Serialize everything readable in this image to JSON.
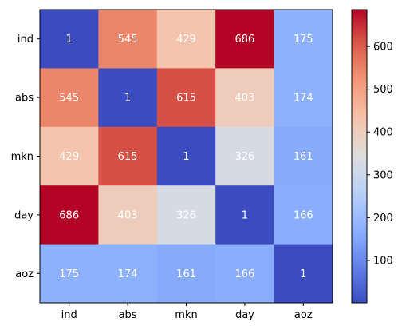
{
  "chart_data": {
    "type": "heatmap",
    "title": "",
    "xlabel": "",
    "ylabel": "",
    "x_categories": [
      "ind",
      "abs",
      "mkn",
      "day",
      "aoz"
    ],
    "y_categories": [
      "ind",
      "abs",
      "mkn",
      "day",
      "aoz"
    ],
    "values": [
      [
        1,
        545,
        429,
        686,
        175
      ],
      [
        545,
        1,
        615,
        403,
        174
      ],
      [
        429,
        615,
        1,
        326,
        161
      ],
      [
        686,
        403,
        326,
        1,
        166
      ],
      [
        175,
        174,
        161,
        166,
        1
      ]
    ],
    "colormap": "coolwarm",
    "color_range": [
      1,
      686
    ],
    "colorbar_ticks": [
      100,
      200,
      300,
      400,
      500,
      600
    ],
    "colorbar_position": "right",
    "annotation_color": "#ffffff",
    "grid": false
  }
}
